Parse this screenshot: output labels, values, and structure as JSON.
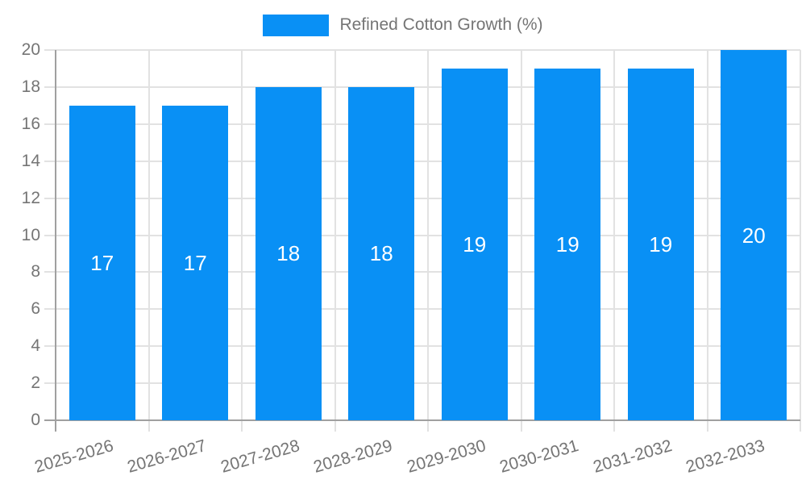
{
  "chart_data": {
    "type": "bar",
    "title": "",
    "legend_label": "Refined Cotton Growth (%)",
    "legend_position": "top-center",
    "categories": [
      "2025-2026",
      "2026-2027",
      "2027-2028",
      "2028-2029",
      "2029-2030",
      "2030-2031",
      "2031-2032",
      "2032-2033"
    ],
    "values": [
      17,
      17,
      18,
      18,
      19,
      19,
      19,
      20
    ],
    "value_labels": [
      "17",
      "17",
      "18",
      "18",
      "19",
      "19",
      "19",
      "20"
    ],
    "xlabel": "",
    "ylabel": "",
    "ylim": [
      0,
      20
    ],
    "ytick_step": 2,
    "yticks": [
      0,
      2,
      4,
      6,
      8,
      10,
      12,
      14,
      16,
      18,
      20
    ],
    "grid": true
  },
  "colors": {
    "bar": "#0990f5",
    "grid": "#e2e2e2",
    "axis": "#a0a0a0",
    "tick_text": "#757575",
    "bar_label_text": "#ffffff",
    "background": "#ffffff"
  }
}
